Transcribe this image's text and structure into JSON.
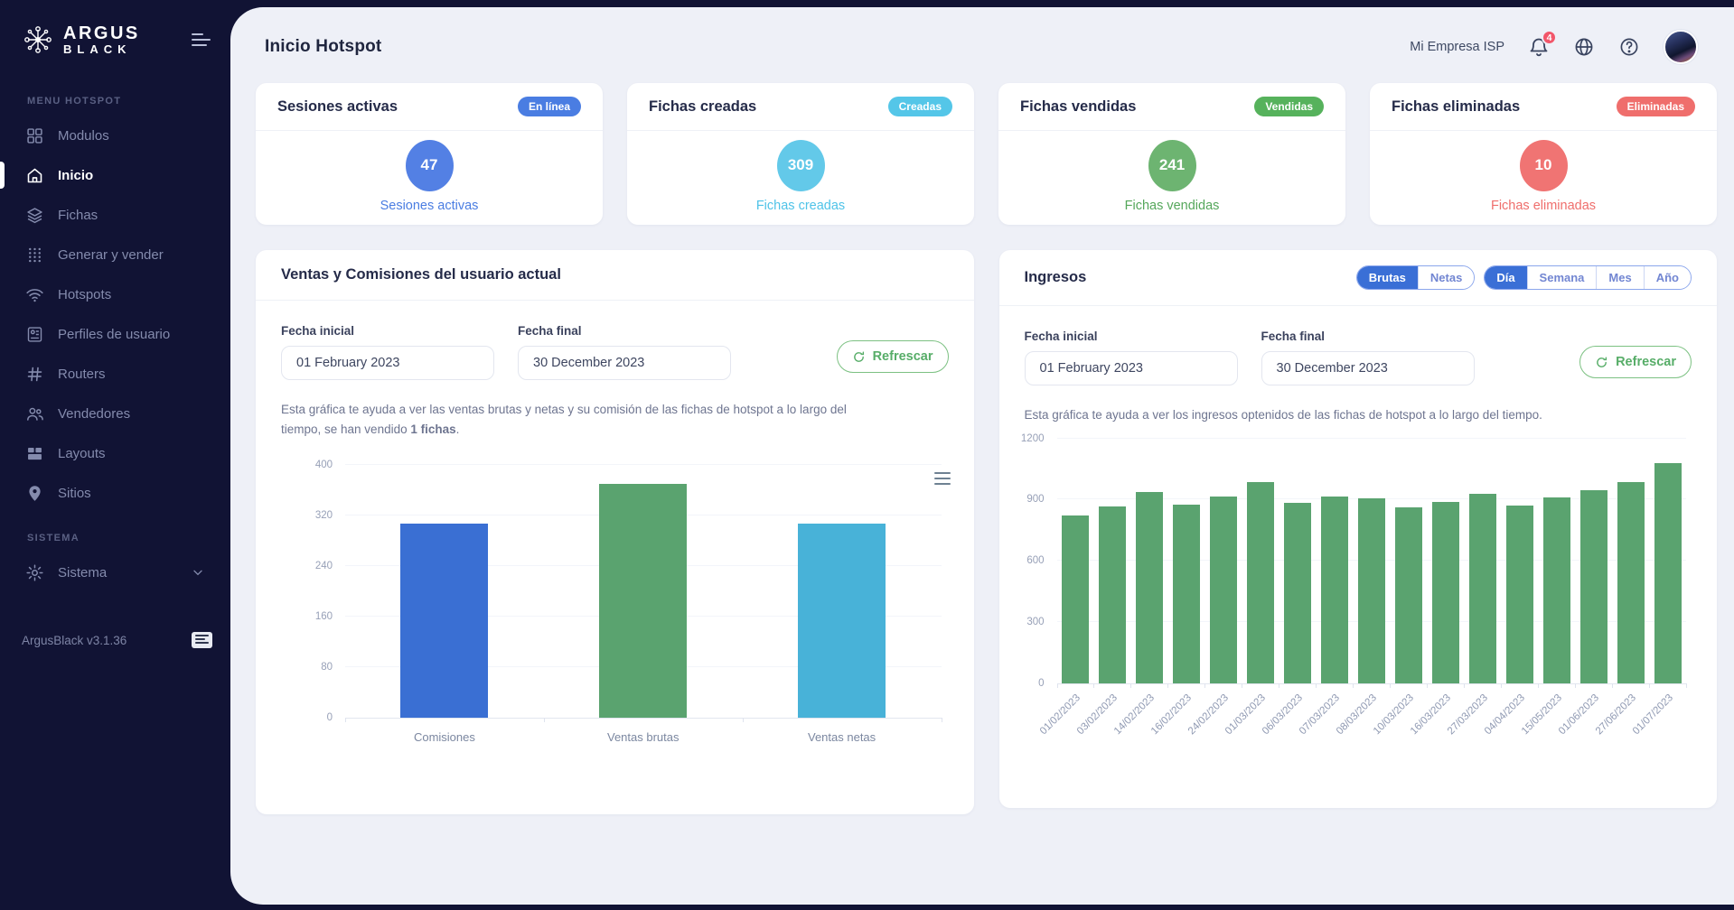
{
  "sidebar": {
    "logo_line1": "ARGUS",
    "logo_line2": "BLACK",
    "menu_section": "MENU HOTSPOT",
    "items": [
      {
        "label": "Modulos",
        "icon": "modules-grid-icon",
        "active": false
      },
      {
        "label": "Inicio",
        "icon": "home-icon",
        "active": true
      },
      {
        "label": "Fichas",
        "icon": "layers-icon",
        "active": false
      },
      {
        "label": "Generar y vender",
        "icon": "dots-grid-icon",
        "active": false
      },
      {
        "label": "Hotspots",
        "icon": "wifi-icon",
        "active": false
      },
      {
        "label": "Perfiles de usuario",
        "icon": "id-card-icon",
        "active": false
      },
      {
        "label": "Routers",
        "icon": "hash-icon",
        "active": false
      },
      {
        "label": "Vendedores",
        "icon": "users-icon",
        "active": false
      },
      {
        "label": "Layouts",
        "icon": "layout-icon",
        "active": false
      },
      {
        "label": "Sitios",
        "icon": "map-pin-icon",
        "active": false
      }
    ],
    "system_section": "SISTEMA",
    "system_item": {
      "label": "Sistema",
      "icon": "gear-icon"
    },
    "version": "ArgusBlack v3.1.36"
  },
  "header": {
    "title": "Inicio Hotspot",
    "company": "Mi Empresa ISP",
    "notification_count": "4"
  },
  "stats": [
    {
      "title": "Sesiones activas",
      "badge": "En línea",
      "value": "47",
      "label": "Sesiones activas",
      "badge_color": "#4a7de2",
      "circle_color": "#5380e4",
      "label_color": "#4a7de2"
    },
    {
      "title": "Fichas creadas",
      "badge": "Creadas",
      "value": "309",
      "label": "Fichas creadas",
      "badge_color": "#54c6e8",
      "circle_color": "#63c9e9",
      "label_color": "#4fc3e8"
    },
    {
      "title": "Fichas vendidas",
      "badge": "Vendidas",
      "value": "241",
      "label": "Fichas vendidas",
      "badge_color": "#56b25c",
      "circle_color": "#6db471",
      "label_color": "#55a75b"
    },
    {
      "title": "Fichas eliminadas",
      "badge": "Eliminadas",
      "value": "10",
      "label": "Fichas eliminadas",
      "badge_color": "#ef6e6c",
      "circle_color": "#f07473",
      "label_color": "#ef6e6c"
    }
  ],
  "sales_card": {
    "title": "Ventas y Comisiones del usuario actual",
    "fecha_inicial_label": "Fecha inicial",
    "fecha_inicial_value": "01 February 2023",
    "fecha_final_label": "Fecha final",
    "fecha_final_value": "30 December 2023",
    "refresh_label": "Refrescar",
    "desc_part1": "Esta gráfica te ayuda a ver las ventas brutas y netas y su comisión de las fichas de hotspot a lo largo del tiempo, se han vendido ",
    "desc_bold": "1 fichas",
    "desc_part2": "."
  },
  "ingresos_card": {
    "title": "Ingresos",
    "toggle_groups": [
      {
        "options": [
          "Brutas",
          "Netas"
        ],
        "selected": "Brutas"
      },
      {
        "options": [
          "Día",
          "Semana",
          "Mes",
          "Año"
        ],
        "selected": "Día"
      }
    ],
    "fecha_inicial_label": "Fecha inicial",
    "fecha_inicial_value": "01 February 2023",
    "fecha_final_label": "Fecha final",
    "fecha_final_value": "30 December 2023",
    "refresh_label": "Refrescar",
    "desc": "Esta gráfica te ayuda a ver los ingresos optenidos de las fichas de hotspot a lo largo del tiempo."
  },
  "chart_data": [
    {
      "type": "bar",
      "title": "Ventas y Comisiones del usuario actual",
      "categories": [
        "Comisiones",
        "Ventas brutas",
        "Ventas netas"
      ],
      "values": [
        307,
        370,
        307
      ],
      "bar_colors": [
        "#3a6fd3",
        "#5aa36f",
        "#48b2d8"
      ],
      "ylim": [
        0,
        400
      ],
      "yticks": [
        0,
        80,
        160,
        240,
        320,
        400
      ],
      "xlabel": "",
      "ylabel": "",
      "grid": true,
      "legend": "none"
    },
    {
      "type": "bar",
      "title": "Ingresos",
      "categories": [
        "01/02/2023",
        "03/02/2023",
        "14/02/2023",
        "16/02/2023",
        "24/02/2023",
        "01/03/2023",
        "06/03/2023",
        "07/03/2023",
        "08/03/2023",
        "10/03/2023",
        "16/03/2023",
        "27/03/2023",
        "04/04/2023",
        "15/05/2023",
        "01/06/2023",
        "27/06/2023",
        "01/07/2023"
      ],
      "values": [
        820,
        865,
        935,
        875,
        915,
        985,
        885,
        915,
        905,
        860,
        890,
        930,
        870,
        910,
        945,
        985,
        1080
      ],
      "bar_colors": [
        "#5aa36f"
      ],
      "ylim": [
        0,
        1200
      ],
      "yticks": [
        0,
        300,
        600,
        900,
        1200
      ],
      "xlabel": "",
      "ylabel": "",
      "grid": true,
      "legend": "none"
    }
  ]
}
